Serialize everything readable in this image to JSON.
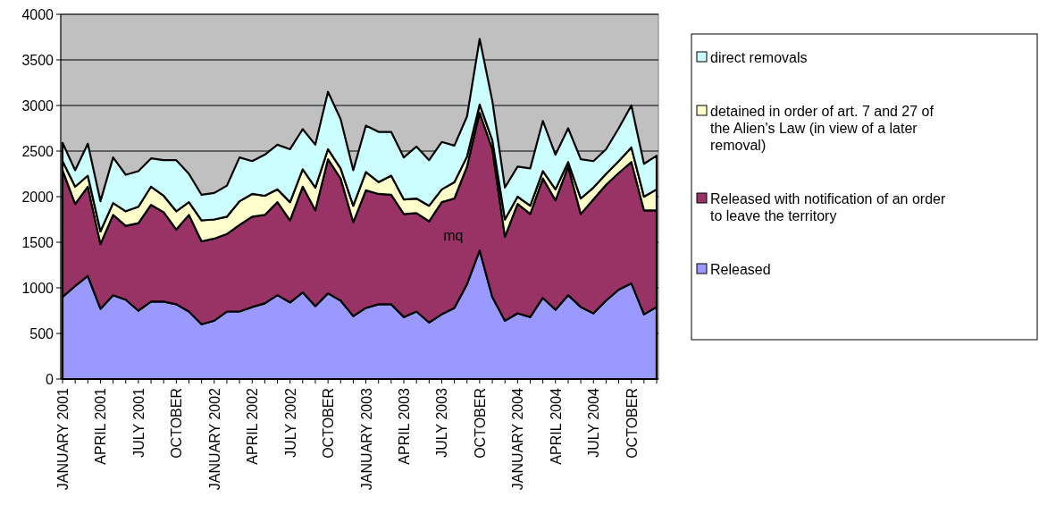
{
  "chart_data": {
    "type": "area",
    "stacked": true,
    "categories": [
      "JANUARY 2001",
      null,
      null,
      "APRIL 2001",
      null,
      null,
      "JULY 2001",
      null,
      null,
      "OCTOBER",
      null,
      null,
      "JANUARY 2002",
      null,
      null,
      "APRIL 2002",
      null,
      null,
      "JULY 2002",
      null,
      null,
      "OCTOBER",
      null,
      null,
      "JANUARY 2003",
      null,
      null,
      "APRIL 2003",
      null,
      null,
      "JULY 2003",
      null,
      null,
      "OCTOBER",
      null,
      null,
      "JANUARY 2004",
      null,
      null,
      "APRIL 2004",
      null,
      null,
      "JULY 2004",
      null,
      null,
      "OCTOBER",
      null,
      null
    ],
    "series": [
      {
        "name": "Released",
        "color": "#9999ff",
        "values": [
          900,
          1020,
          1130,
          770,
          920,
          870,
          750,
          850,
          850,
          820,
          740,
          600,
          640,
          740,
          740,
          790,
          830,
          920,
          840,
          950,
          800,
          940,
          860,
          690,
          780,
          820,
          820,
          680,
          740,
          620,
          710,
          780,
          1040,
          1410,
          900,
          640,
          720,
          680,
          890,
          760,
          920,
          790,
          720,
          860,
          980,
          1050,
          710,
          790
        ]
      },
      {
        "name": "Released with notification of an order to leave the territory",
        "color": "#993366",
        "values": [
          1390,
          900,
          980,
          710,
          880,
          810,
          960,
          1060,
          980,
          820,
          1060,
          910,
          900,
          850,
          950,
          990,
          970,
          1020,
          900,
          1160,
          1050,
          1470,
          1340,
          1030,
          1290,
          1210,
          1200,
          1130,
          1080,
          1110,
          1230,
          1200,
          1290,
          1510,
          1620,
          920,
          1200,
          1130,
          1310,
          1200,
          1410,
          1020,
          1250,
          1270,
          1280,
          1330,
          1140,
          1060
        ]
      },
      {
        "name": "detained in order of art. 7 and 27 of the Alien's Law (in view of a later removal)",
        "color": "#ffffcc",
        "values": [
          100,
          190,
          120,
          140,
          130,
          160,
          180,
          200,
          180,
          200,
          140,
          230,
          210,
          190,
          260,
          250,
          210,
          140,
          200,
          190,
          250,
          110,
          110,
          180,
          200,
          130,
          210,
          160,
          160,
          170,
          140,
          180,
          110,
          90,
          100,
          190,
          80,
          90,
          80,
          120,
          50,
          170,
          130,
          120,
          130,
          160,
          150,
          230
        ]
      },
      {
        "name": "direct removals",
        "color": "#ccffff",
        "values": [
          200,
          180,
          350,
          330,
          500,
          400,
          390,
          310,
          390,
          560,
          310,
          280,
          290,
          340,
          480,
          360,
          450,
          490,
          580,
          440,
          470,
          630,
          540,
          390,
          510,
          550,
          480,
          460,
          570,
          500,
          520,
          400,
          440,
          720,
          430,
          350,
          330,
          410,
          550,
          380,
          370,
          430,
          290,
          270,
          360,
          460,
          360,
          370
        ]
      }
    ],
    "ylim": [
      0,
      4000
    ],
    "yticks": [
      0,
      500,
      1000,
      1500,
      2000,
      2500,
      3000,
      3500,
      4000
    ],
    "grid": "y",
    "legend": "right",
    "annotations": [
      "mq"
    ]
  }
}
